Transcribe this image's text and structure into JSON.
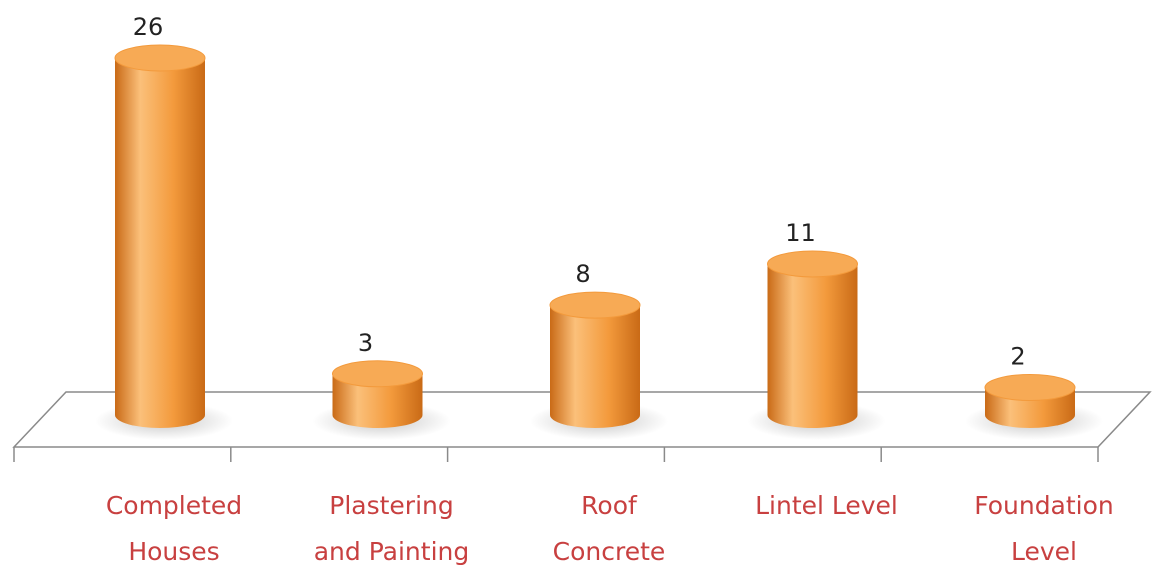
{
  "chart_data": {
    "type": "bar",
    "title": "",
    "xlabel": "",
    "ylabel": "",
    "ylim": [
      0,
      26
    ],
    "categories": [
      [
        "Completed",
        "Houses"
      ],
      [
        "Plastering",
        "and Painting"
      ],
      [
        "Roof",
        "Concrete"
      ],
      [
        "Lintel Level"
      ],
      [
        "Foundation",
        "Level"
      ]
    ],
    "values": [
      26,
      3,
      8,
      11,
      2
    ],
    "value_labels": [
      "26",
      "3",
      "8",
      "11",
      "2"
    ],
    "bar_style": "3d-cylinder",
    "grid": false,
    "legend": "none",
    "colors": {
      "bar_light": "#fbc07a",
      "bar_main": "#f39a3c",
      "bar_dark": "#c96a16",
      "bar_top": "#f7aa55",
      "category_text": "#c84040",
      "axis": "#8a8a8a"
    }
  }
}
